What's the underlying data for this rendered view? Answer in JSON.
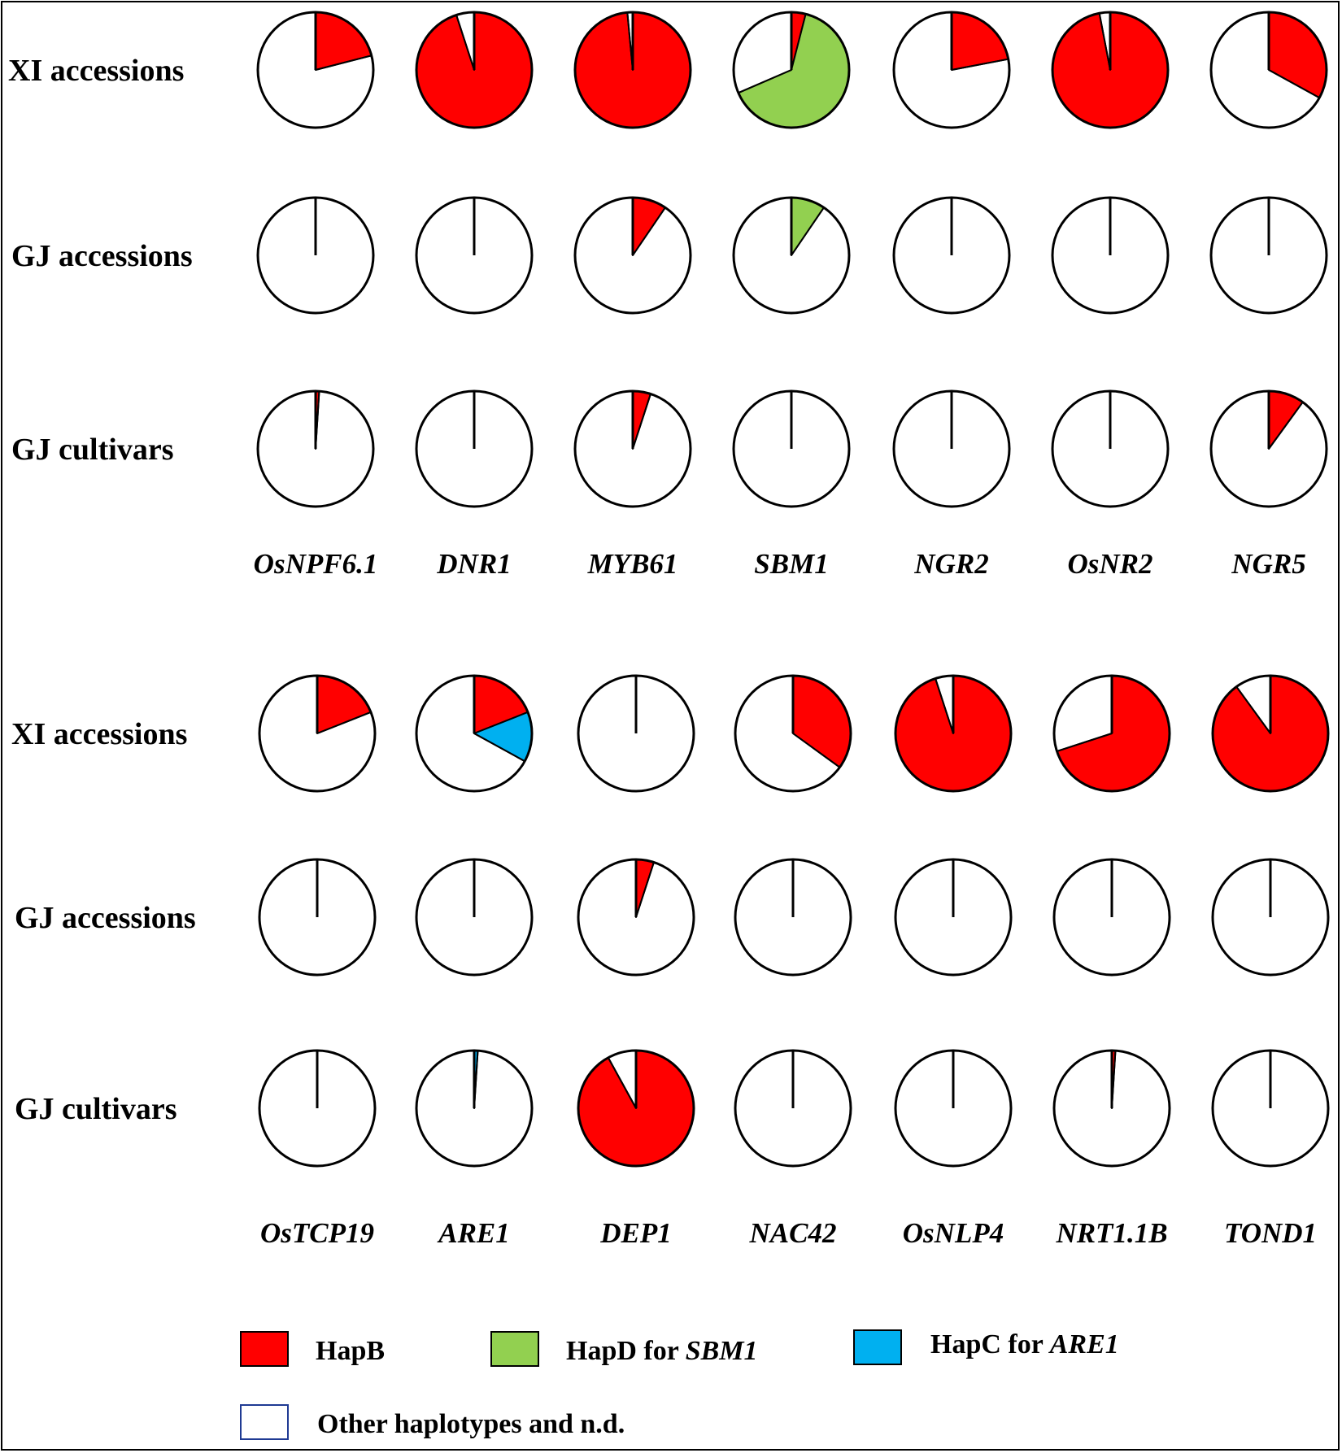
{
  "colors": {
    "hapB": "#ff0000",
    "hapD": "#92d050",
    "hapC": "#00b0f0",
    "other": "#ffffff",
    "outline": "#000000",
    "legend_other_border": "#1f3a93"
  },
  "chart_data": [
    {
      "type": "pie",
      "panel": "top",
      "rows": [
        "XI accessions",
        "GJ accessions",
        "GJ cultivars"
      ],
      "genes": [
        "OsNPF6.1",
        "DNR1",
        "MYB61",
        "SBM1",
        "NGR2",
        "OsNR2",
        "NGR5"
      ],
      "series_order": [
        "HapB",
        "HapD for SBM1",
        "HapC for ARE1",
        "Other haplotypes and n.d."
      ],
      "fractions": {
        "XI accessions": {
          "OsNPF6.1": {
            "HapB": 0.21
          },
          "DNR1": {
            "HapB": 0.95
          },
          "MYB61": {
            "HapB": 0.985
          },
          "SBM1": {
            "HapB": 0.04,
            "HapD for SBM1": 0.645
          },
          "NGR2": {
            "HapB": 0.22
          },
          "OsNR2": {
            "HapB": 0.97
          },
          "NGR5": {
            "HapB": 0.33
          }
        },
        "GJ accessions": {
          "OsNPF6.1": {
            "HapB": 0
          },
          "DNR1": {
            "HapB": 0
          },
          "MYB61": {
            "HapB": 0.095
          },
          "SBM1": {
            "HapD for SBM1": 0.095
          },
          "NGR2": {
            "HapB": 0
          },
          "OsNR2": {
            "HapB": 0
          },
          "NGR5": {
            "HapB": 0
          }
        },
        "GJ cultivars": {
          "OsNPF6.1": {
            "HapB": 0.01
          },
          "DNR1": {
            "HapB": 0
          },
          "MYB61": {
            "HapB": 0.05
          },
          "SBM1": {
            "HapB": 0
          },
          "NGR2": {
            "HapB": 0
          },
          "OsNR2": {
            "HapB": 0
          },
          "NGR5": {
            "HapB": 0.1
          }
        }
      }
    },
    {
      "type": "pie",
      "panel": "bottom",
      "rows": [
        "XI accessions",
        "GJ accessions",
        "GJ cultivars"
      ],
      "genes": [
        "OsTCP19",
        "ARE1",
        "DEP1",
        "NAC42",
        "OsNLP4",
        "NRT1.1B",
        "TOND1"
      ],
      "series_order": [
        "HapB",
        "HapD for SBM1",
        "HapC for ARE1",
        "Other haplotypes and n.d."
      ],
      "fractions": {
        "XI accessions": {
          "OsTCP19": {
            "HapB": 0.19
          },
          "ARE1": {
            "HapB": 0.19,
            "HapC for ARE1": 0.14
          },
          "DEP1": {
            "HapB": 0
          },
          "NAC42": {
            "HapB": 0.35
          },
          "OsNLP4": {
            "HapB": 0.95
          },
          "NRT1.1B": {
            "HapB": 0.7
          },
          "TOND1": {
            "HapB": 0.9
          }
        },
        "GJ accessions": {
          "OsTCP19": {
            "HapB": 0
          },
          "ARE1": {
            "HapB": 0
          },
          "DEP1": {
            "HapB": 0.05
          },
          "NAC42": {
            "HapB": 0
          },
          "OsNLP4": {
            "HapB": 0
          },
          "NRT1.1B": {
            "HapB": 0
          },
          "TOND1": {
            "HapB": 0
          }
        },
        "GJ cultivars": {
          "OsTCP19": {
            "HapB": 0
          },
          "ARE1": {
            "HapC for ARE1": 0.01
          },
          "DEP1": {
            "HapB": 0.92
          },
          "NAC42": {
            "HapB": 0
          },
          "OsNLP4": {
            "HapB": 0
          },
          "NRT1.1B": {
            "HapB": 0.01
          },
          "TOND1": {
            "HapB": 0
          }
        }
      }
    }
  ],
  "legend": {
    "hapB": "HapB",
    "hapD_prefix": "HapD for ",
    "hapD_gene": "SBM1",
    "hapC_prefix": "HapC for ",
    "hapC_gene": "ARE1",
    "other": "Other haplotypes and n.d."
  }
}
